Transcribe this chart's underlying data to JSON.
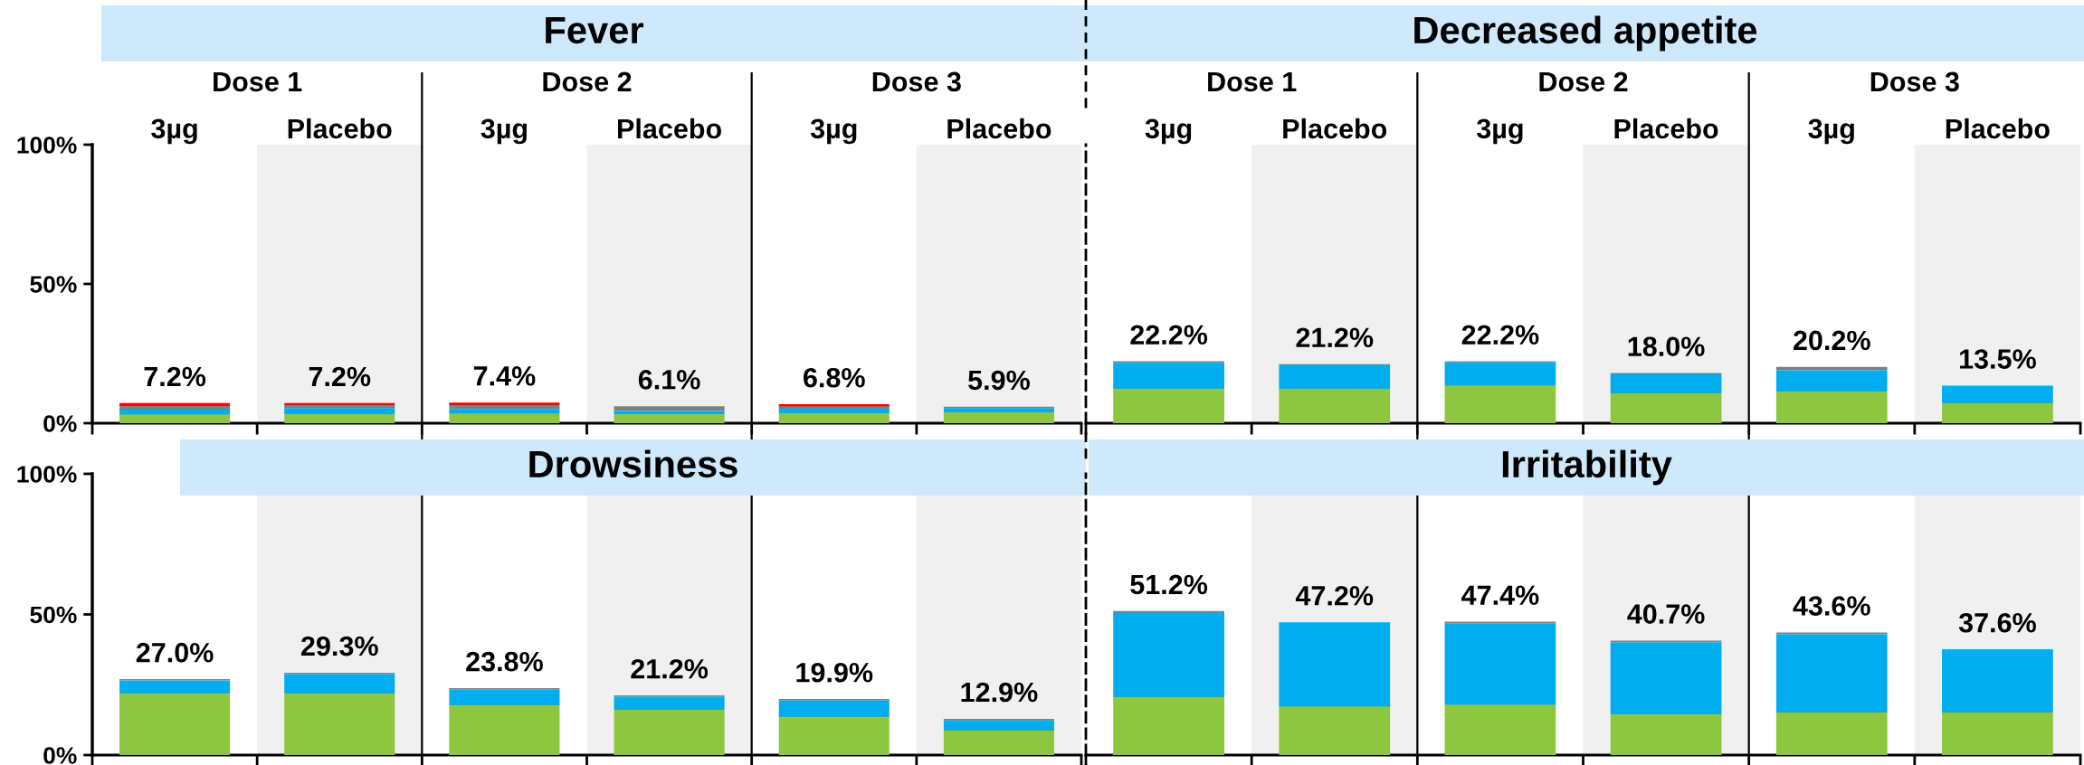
{
  "chart_data": [
    {
      "type": "bar",
      "title": "Fever",
      "stacked": true,
      "categories": [
        "3µg",
        "Placebo",
        "3µg",
        "Placebo",
        "3µg",
        "Placebo"
      ],
      "series": [
        {
          "color": "#8dc63f",
          "values": [
            3.0,
            3.2,
            3.3,
            3.2,
            3.4,
            3.8
          ]
        },
        {
          "color": "#00aeef",
          "values": [
            1.9,
            2.2,
            1.8,
            1.2,
            1.8,
            1.6
          ]
        },
        {
          "color": "#7f7f7f",
          "values": [
            1.3,
            1.1,
            1.4,
            1.7,
            0.7,
            0.5
          ]
        },
        {
          "color": "#ff0000",
          "values": [
            1.0,
            0.7,
            0.9,
            null,
            0.9,
            null
          ]
        }
      ],
      "totals": [
        "7.2%",
        "7.2%",
        "7.4%",
        "6.1%",
        "6.8%",
        "5.9%"
      ],
      "ylim": [
        0,
        100
      ],
      "yticks": [
        {
          "value": 0,
          "label": "0%"
        },
        {
          "value": 50,
          "label": "50%"
        },
        {
          "value": 100,
          "label": "100%"
        }
      ],
      "annotations": [
        "Dose 1",
        "Dose 2",
        "Dose 3"
      ]
    },
    {
      "type": "bar",
      "title": "Decreased appetite",
      "stacked": true,
      "categories": [
        "3µg",
        "Placebo",
        "3µg",
        "Placebo",
        "3µg",
        "Placebo"
      ],
      "series": [
        {
          "color": "#8dc63f",
          "values": [
            12.2,
            12.2,
            13.4,
            10.6,
            11.3,
            7.1
          ]
        },
        {
          "color": "#00aeef",
          "values": [
            9.5,
            8.6,
            8.4,
            6.9,
            7.7,
            6.4
          ]
        },
        {
          "color": "#7f7f7f",
          "values": [
            0.5,
            0.4,
            0.4,
            0.5,
            1.2,
            null
          ]
        }
      ],
      "totals": [
        "22.2%",
        "21.2%",
        "22.2%",
        "18.0%",
        "20.2%",
        "13.5%"
      ],
      "ylim": [
        0,
        100
      ],
      "tick_labels": "x",
      "annotations": [
        "Dose 1",
        "Dose 2",
        "Dose 3"
      ]
    },
    {
      "type": "bar",
      "title": "Drowsiness",
      "stacked": true,
      "categories": [
        null,
        null,
        null,
        null,
        null,
        null
      ],
      "series": [
        {
          "color": "#8dc63f",
          "values": [
            21.8,
            21.8,
            17.6,
            16.1,
            13.4,
            8.7
          ]
        },
        {
          "color": "#00aeef",
          "values": [
            4.7,
            7.0,
            5.6,
            4.6,
            6.0,
            3.6
          ]
        },
        {
          "color": "#7f7f7f",
          "values": [
            0.5,
            0.5,
            0.6,
            0.5,
            0.5,
            0.6
          ]
        }
      ],
      "totals": [
        "27.0%",
        "29.3%",
        "23.8%",
        "21.2%",
        "19.9%",
        "12.9%"
      ],
      "ylim": [
        0,
        100
      ],
      "yticks": [
        {
          "value": 0,
          "label": "0%"
        },
        {
          "value": 50,
          "label": "50%"
        },
        {
          "value": 100,
          "label": "100%"
        }
      ]
    },
    {
      "type": "bar",
      "title": "Irritability",
      "stacked": true,
      "categories": [
        null,
        null,
        null,
        null,
        null,
        null
      ],
      "series": [
        {
          "color": "#8dc63f",
          "values": [
            20.5,
            17.1,
            17.8,
            14.4,
            15.1,
            15.1
          ]
        },
        {
          "color": "#00aeef",
          "values": [
            30.0,
            30.1,
            28.9,
            25.6,
            27.8,
            22.5
          ]
        },
        {
          "color": "#7f7f7f",
          "values": [
            0.7,
            null,
            0.7,
            0.7,
            0.7,
            null
          ]
        }
      ],
      "totals": [
        "51.2%",
        "47.2%",
        "47.4%",
        "40.7%",
        "43.6%",
        "37.6%"
      ],
      "ylim": [
        0,
        100
      ],
      "tick_labels": false
    }
  ]
}
